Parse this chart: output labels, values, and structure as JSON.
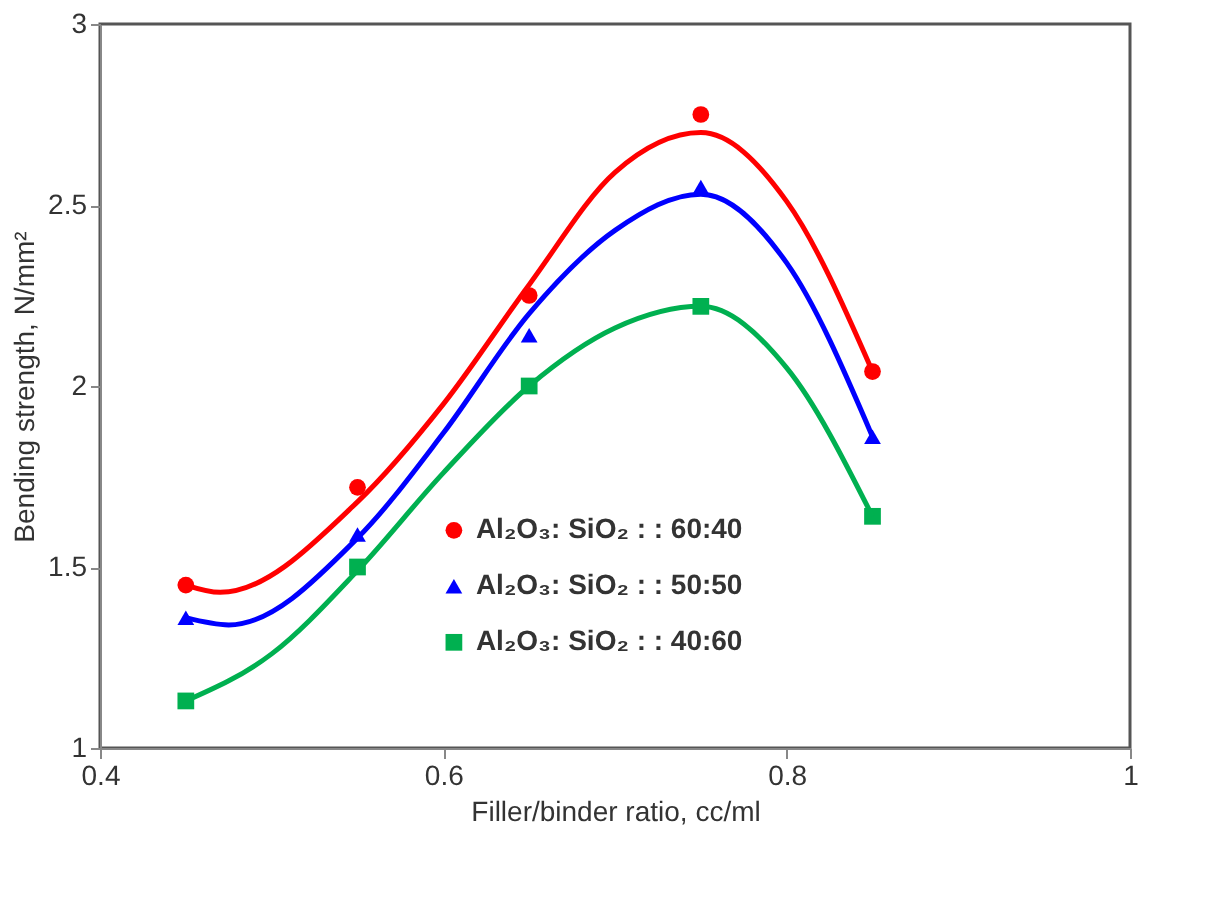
{
  "chart_data": {
    "type": "scatter",
    "xlabel": "Filler/binder ratio, cc/ml",
    "ylabel": "Bending strength, N/mm²",
    "xlim": [
      0.4,
      1
    ],
    "xticks": [
      0.4,
      0.6,
      0.8,
      1
    ],
    "ylim": [
      1,
      3
    ],
    "yticks": [
      1,
      1.5,
      2,
      2.5,
      3
    ],
    "grid": false,
    "legend": "bottom",
    "series": [
      {
        "name": "Al₂O₃: SiO₂  : : 60:40",
        "color": "#ff0000",
        "marker": "circle",
        "x": [
          0.45,
          0.55,
          0.65,
          0.75,
          0.85
        ],
        "values": [
          1.45,
          1.72,
          2.25,
          2.75,
          2.04
        ]
      },
      {
        "name": "Al₂O₃: SiO₂  : : 50:50",
        "color": "#0000ff",
        "marker": "triangle",
        "x": [
          0.45,
          0.55,
          0.65,
          0.75,
          0.85
        ],
        "values": [
          1.36,
          1.59,
          2.14,
          2.55,
          1.86
        ]
      },
      {
        "name": "Al₂O₃: SiO₂  : : 40:60",
        "color": "#00b050",
        "marker": "square",
        "x": [
          0.45,
          0.55,
          0.65,
          0.75,
          0.85
        ],
        "values": [
          1.13,
          1.5,
          2.0,
          2.22,
          1.64
        ]
      },
      {
        "type": "line",
        "color": "#ff0000",
        "marker": "none",
        "line_style": "solid",
        "x": [
          0.45,
          0.47,
          0.55,
          0.6,
          0.65,
          0.7,
          0.75,
          0.8,
          0.85
        ],
        "values": [
          1.45,
          1.43,
          1.68,
          1.95,
          2.28,
          2.59,
          2.7,
          2.51,
          2.04
        ]
      },
      {
        "type": "line",
        "color": "#0000ff",
        "marker": "none",
        "line_style": "solid",
        "x": [
          0.45,
          0.475,
          0.55,
          0.6,
          0.65,
          0.7,
          0.75,
          0.8,
          0.85
        ],
        "values": [
          1.36,
          1.34,
          1.58,
          1.87,
          2.2,
          2.43,
          2.53,
          2.34,
          1.86
        ]
      },
      {
        "type": "line",
        "color": "#00b050",
        "marker": "none",
        "line_style": "solid",
        "x": [
          0.45,
          0.5,
          0.55,
          0.6,
          0.65,
          0.7,
          0.75,
          0.8,
          0.85
        ],
        "values": [
          1.13,
          1.26,
          1.49,
          1.76,
          2.0,
          2.16,
          2.22,
          2.05,
          1.64
        ]
      }
    ]
  }
}
